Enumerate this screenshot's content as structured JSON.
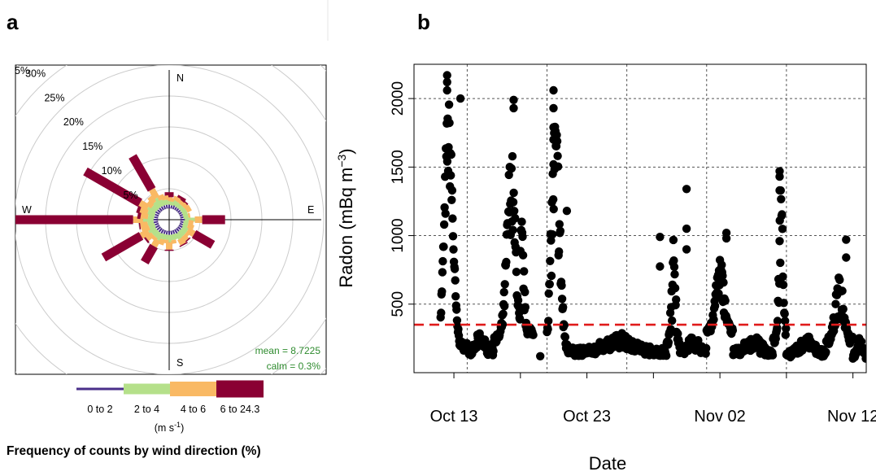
{
  "panels": {
    "a": {
      "label": "a"
    },
    "b": {
      "label": "b"
    }
  },
  "chart_data": [
    {
      "type": "polar-bar",
      "subtype": "wind-rose",
      "radial_ticks": [
        5,
        10,
        15,
        20,
        25,
        30
      ],
      "radial_tick_labels": [
        "5%",
        "10%",
        "15%",
        "20%",
        "25%",
        "30%"
      ],
      "radial_max": 35,
      "corner_tick_label": "5%",
      "compass_labels": {
        "N": "N",
        "E": "E",
        "S": "S",
        "W": "W"
      },
      "bins": [
        "0 to 2",
        "2 to 4",
        "4 to 6",
        "6 to 24.3"
      ],
      "bin_colors": [
        "#4a2f8a",
        "#b5e08a",
        "#f9b964",
        "#8a0033"
      ],
      "bin_widths": [
        2,
        5,
        8,
        11
      ],
      "legend_title": "Frequency of counts by wind direction (%)",
      "legend_units": "(m s",
      "legend_units_sup": "-1",
      "legend_units_close": ")",
      "mean_text": "mean = 8.7225",
      "calm_text": "calm = 0.3%",
      "stats_color": "#2e8b2e",
      "directions": [
        {
          "deg": 0,
          "values": [
            0.6,
            0.6,
            0.6,
            0.8
          ]
        },
        {
          "deg": 10,
          "values": [
            0.5,
            0.6,
            0.6,
            0.0
          ]
        },
        {
          "deg": 20,
          "values": [
            0.6,
            0.8,
            0.7,
            0.0
          ]
        },
        {
          "deg": 30,
          "values": [
            0.5,
            0.8,
            0.7,
            0.4
          ]
        },
        {
          "deg": 40,
          "values": [
            0.5,
            0.7,
            0.6,
            0.3
          ]
        },
        {
          "deg": 50,
          "values": [
            0.5,
            0.7,
            0.7,
            0.0
          ]
        },
        {
          "deg": 60,
          "values": [
            0.5,
            0.8,
            0.8,
            0.0
          ]
        },
        {
          "deg": 70,
          "values": [
            0.5,
            0.8,
            0.0,
            0.0
          ]
        },
        {
          "deg": 80,
          "values": [
            0.5,
            0.8,
            0.3,
            0.0
          ]
        },
        {
          "deg": 90,
          "values": [
            0.7,
            1.6,
            1.2,
            3.7
          ]
        },
        {
          "deg": 100,
          "values": [
            0.5,
            0.8,
            0.8,
            0.0
          ]
        },
        {
          "deg": 110,
          "values": [
            0.5,
            0.8,
            1.0,
            0.0
          ]
        },
        {
          "deg": 120,
          "values": [
            0.6,
            1.0,
            1.2,
            3.5
          ]
        },
        {
          "deg": 130,
          "values": [
            0.6,
            1.0,
            0.6,
            0.0
          ]
        },
        {
          "deg": 140,
          "values": [
            0.6,
            1.0,
            0.9,
            0.2
          ]
        },
        {
          "deg": 150,
          "values": [
            0.7,
            1.0,
            1.0,
            0.2
          ]
        },
        {
          "deg": 160,
          "values": [
            0.6,
            0.9,
            0.0,
            0.0
          ]
        },
        {
          "deg": 170,
          "values": [
            0.6,
            0.9,
            0.6,
            0.0
          ]
        },
        {
          "deg": 180,
          "values": [
            0.6,
            1.2,
            1.2,
            0.2
          ]
        },
        {
          "deg": 190,
          "values": [
            0.6,
            0.8,
            0.6,
            0.0
          ]
        },
        {
          "deg": 200,
          "values": [
            0.6,
            0.9,
            0.9,
            0.0
          ]
        },
        {
          "deg": 210,
          "values": [
            0.7,
            1.2,
            1.2,
            3.0
          ]
        },
        {
          "deg": 220,
          "values": [
            0.7,
            1.0,
            0.6,
            0.0
          ]
        },
        {
          "deg": 230,
          "values": [
            0.7,
            1.0,
            1.2,
            0.3
          ]
        },
        {
          "deg": 240,
          "values": [
            0.7,
            1.3,
            1.4,
            7.0
          ]
        },
        {
          "deg": 250,
          "values": [
            0.6,
            1.0,
            1.3,
            0.0
          ]
        },
        {
          "deg": 260,
          "values": [
            0.7,
            1.0,
            1.2,
            0.2
          ]
        },
        {
          "deg": 270,
          "values": [
            0.7,
            1.7,
            1.6,
            25.5
          ]
        },
        {
          "deg": 280,
          "values": [
            0.6,
            1.0,
            1.2,
            0.5
          ]
        },
        {
          "deg": 290,
          "values": [
            0.6,
            1.2,
            1.3,
            0.5
          ]
        },
        {
          "deg": 300,
          "values": [
            0.7,
            1.4,
            1.5,
            10.2
          ]
        },
        {
          "deg": 310,
          "values": [
            0.6,
            1.0,
            1.0,
            0.0
          ]
        },
        {
          "deg": 320,
          "values": [
            0.6,
            1.2,
            1.2,
            0.0
          ]
        },
        {
          "deg": 330,
          "values": [
            0.6,
            1.6,
            1.6,
            6.2
          ]
        },
        {
          "deg": 340,
          "values": [
            0.6,
            1.0,
            0.8,
            0.0
          ]
        },
        {
          "deg": 350,
          "values": [
            0.6,
            0.8,
            0.7,
            0.0
          ]
        }
      ]
    },
    {
      "type": "scatter",
      "xlabel": "Date",
      "ylabel": "Radon (mBq m",
      "ylabel_sup": "−3",
      "ylabel_close": ")",
      "xlim": [
        "2023-10-10",
        "2023-11-13"
      ],
      "ylim": [
        0,
        2250
      ],
      "yticks": [
        500,
        1000,
        1500,
        2000
      ],
      "xticks": [
        "2023-10-13",
        "2023-10-23",
        "2023-11-02",
        "2023-11-12"
      ],
      "xtick_labels": [
        "Oct 13",
        "Oct 23",
        "Nov 02",
        "Nov 12"
      ],
      "minor_xticks": [
        "2023-10-18",
        "2023-10-28",
        "2023-11-07"
      ],
      "grid_x_dates": [
        "2023-10-14",
        "2023-10-20",
        "2023-10-26",
        "2023-11-01",
        "2023-11-07",
        "2023-11-13"
      ],
      "grid_y": [
        500,
        1000,
        1500,
        2000
      ],
      "grid": true,
      "threshold": 350,
      "threshold_color": "#e01b1b",
      "point_color": "#000000",
      "segments": [
        {
          "start": "2023-10-12",
          "end": "2023-10-14",
          "peak": 1700,
          "peak_at": 0.3,
          "spread": 300,
          "base": 190
        },
        {
          "start": "2023-10-14",
          "end": "2023-10-16",
          "peak": 240,
          "peak_at": 0.5,
          "spread": 40,
          "base": 150
        },
        {
          "start": "2023-10-16",
          "end": "2023-10-18",
          "peak": 1350,
          "peak_at": 0.65,
          "spread": 320,
          "base": 250
        },
        {
          "start": "2023-10-18",
          "end": "2023-10-19",
          "peak": 900,
          "peak_at": 0.1,
          "spread": 250,
          "base": 300
        },
        {
          "start": "2023-10-20",
          "end": "2023-10-22",
          "peak": 1500,
          "peak_at": 0.32,
          "spread": 450,
          "base": 160
        },
        {
          "start": "2023-10-22",
          "end": "2023-10-29",
          "peak": 230,
          "peak_at": 0.5,
          "spread": 40,
          "base": 150
        },
        {
          "start": "2023-10-29",
          "end": "2023-10-30",
          "peak": 700,
          "peak_at": 0.5,
          "spread": 300,
          "base": 200
        },
        {
          "start": "2023-10-30",
          "end": "2023-11-01",
          "peak": 220,
          "peak_at": 0.5,
          "spread": 40,
          "base": 160
        },
        {
          "start": "2023-11-01",
          "end": "2023-11-03",
          "peak": 700,
          "peak_at": 0.5,
          "spread": 150,
          "base": 300
        },
        {
          "start": "2023-11-03",
          "end": "2023-11-06",
          "peak": 220,
          "peak_at": 0.5,
          "spread": 40,
          "base": 150
        },
        {
          "start": "2023-11-06",
          "end": "2023-11-07",
          "peak": 1050,
          "peak_at": 0.6,
          "spread": 300,
          "base": 230
        },
        {
          "start": "2023-11-07",
          "end": "2023-11-10",
          "peak": 220,
          "peak_at": 0.5,
          "spread": 40,
          "base": 140
        },
        {
          "start": "2023-11-10",
          "end": "2023-11-12",
          "peak": 550,
          "peak_at": 0.5,
          "spread": 150,
          "base": 230
        },
        {
          "start": "2023-11-12",
          "end": "2023-11-13",
          "peak": 210,
          "peak_at": 0.5,
          "spread": 40,
          "base": 130
        }
      ],
      "notable_points": [
        {
          "x": "2023-10-12",
          "y": 2170
        },
        {
          "x": "2023-10-12",
          "y": 2120
        },
        {
          "x": "2023-10-12",
          "y": 2060
        },
        {
          "x": "2023-10-13",
          "y": 2000
        },
        {
          "x": "2023-10-17",
          "y": 1990
        },
        {
          "x": "2023-10-17",
          "y": 1930
        },
        {
          "x": "2023-10-20",
          "y": 2060
        },
        {
          "x": "2023-10-20",
          "y": 1930
        },
        {
          "x": "2023-10-20",
          "y": 1790
        },
        {
          "x": "2023-10-20",
          "y": 1700
        },
        {
          "x": "2023-10-20",
          "y": 1520
        },
        {
          "x": "2023-10-21",
          "y": 1180
        },
        {
          "x": "2023-10-28",
          "y": 990
        },
        {
          "x": "2023-10-28",
          "y": 775
        },
        {
          "x": "2023-10-30",
          "y": 1340
        },
        {
          "x": "2023-10-30",
          "y": 1050
        },
        {
          "x": "2023-10-30",
          "y": 900
        },
        {
          "x": "2023-11-02",
          "y": 1020
        },
        {
          "x": "2023-11-02",
          "y": 980
        },
        {
          "x": "2023-11-06",
          "y": 960
        },
        {
          "x": "2023-11-06",
          "y": 1470
        },
        {
          "x": "2023-11-06",
          "y": 1430
        },
        {
          "x": "2023-11-06",
          "y": 1330
        },
        {
          "x": "2023-11-11",
          "y": 970
        },
        {
          "x": "2023-11-11",
          "y": 840
        },
        {
          "x": "2023-10-19",
          "y": 120
        }
      ]
    }
  ]
}
